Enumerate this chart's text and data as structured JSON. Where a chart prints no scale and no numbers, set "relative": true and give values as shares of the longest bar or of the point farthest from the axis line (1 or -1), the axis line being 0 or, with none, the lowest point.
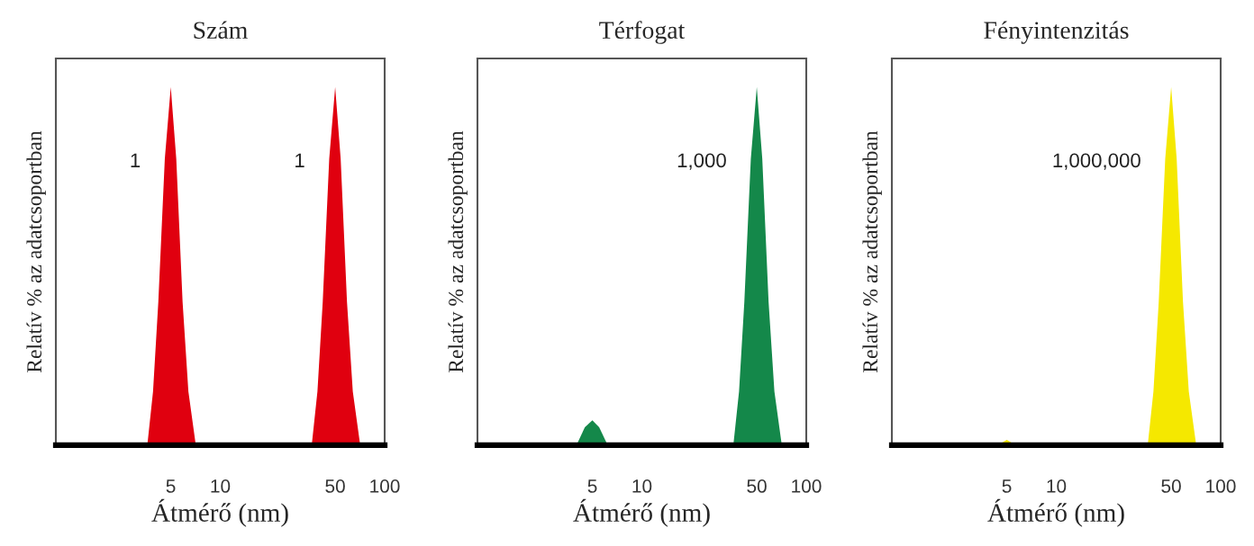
{
  "chart_data": [
    {
      "type": "area",
      "title": "Szám",
      "xlabel": "Átmérő (nm)",
      "ylabel": "Relatív % az adatcsoportban",
      "relative": true,
      "log": "x",
      "xlim": [
        1,
        100
      ],
      "xticks": [
        5,
        10,
        50,
        100
      ],
      "grid": false,
      "series": [
        {
          "color": "#e0000f",
          "x": [
            3.6,
            3.9,
            4.2,
            4.6,
            5.0,
            5.4,
            5.9,
            6.4,
            7.1
          ],
          "values": [
            0,
            0.15,
            0.4,
            0.8,
            1,
            0.8,
            0.4,
            0.15,
            0
          ]
        },
        {
          "color": "#e0000f",
          "x": [
            36,
            39,
            42,
            46,
            50,
            54,
            59,
            64,
            71
          ],
          "values": [
            0,
            0.15,
            0.4,
            0.8,
            1,
            0.8,
            0.4,
            0.15,
            0
          ]
        }
      ],
      "annotations": [
        "1",
        "1"
      ]
    },
    {
      "type": "area",
      "title": "Térfogat",
      "xlabel": "Átmérő (nm)",
      "ylabel": "Relatív % az adatcsoportban",
      "relative": true,
      "log": "x",
      "xlim": [
        1,
        100
      ],
      "xticks": [
        5,
        10,
        50,
        100
      ],
      "grid": false,
      "series": [
        {
          "color": "#14884a",
          "x": [
            4.0,
            4.5,
            5.0,
            5.5,
            6.2
          ],
          "values": [
            0,
            0.05,
            0.07,
            0.05,
            0
          ]
        },
        {
          "color": "#14884a",
          "x": [
            36,
            39,
            42,
            46,
            50,
            54,
            59,
            64,
            71
          ],
          "values": [
            0,
            0.15,
            0.4,
            0.8,
            1,
            0.8,
            0.4,
            0.15,
            0
          ]
        }
      ],
      "annotations": [
        "1,000"
      ]
    },
    {
      "type": "area",
      "title": "Fényintenzitás",
      "xlabel": "Átmérő (nm)",
      "ylabel": "Relatív % az adatcsoportban",
      "relative": true,
      "log": "x",
      "xlim": [
        1,
        100
      ],
      "xticks": [
        5,
        10,
        50,
        100
      ],
      "grid": false,
      "series": [
        {
          "color": "#f5e800",
          "x": [
            4.4,
            5.0,
            5.7
          ],
          "values": [
            0,
            0.015,
            0
          ]
        },
        {
          "color": "#f5e800",
          "x": [
            36,
            39,
            42,
            46,
            50,
            54,
            59,
            64,
            71
          ],
          "values": [
            0,
            0.15,
            0.4,
            0.8,
            1,
            0.8,
            0.4,
            0.15,
            0
          ]
        }
      ],
      "annotations": [
        "1,000,000"
      ]
    }
  ]
}
